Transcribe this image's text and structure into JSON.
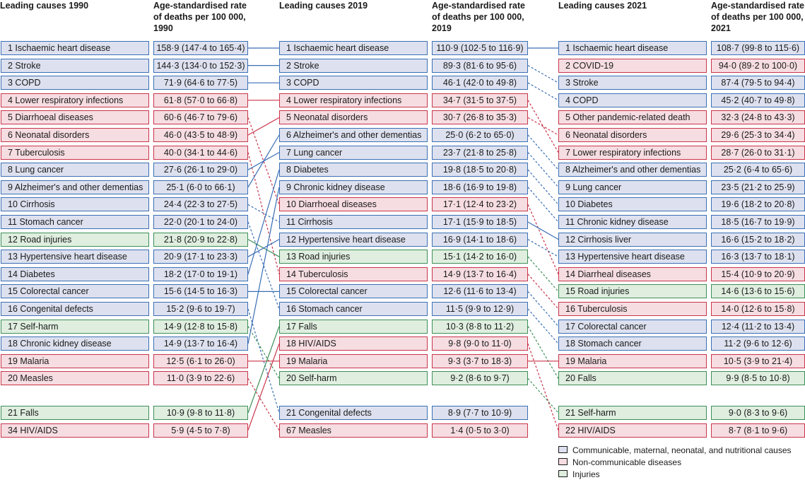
{
  "colors": {
    "communicable": "#3a6fb5",
    "non_communicable": "#c8354a",
    "injuries": "#3d8f57"
  },
  "headers": [
    {
      "cause": "Leading causes 1990",
      "rate1": "Age-standardised rate",
      "rate2": "of deaths per 100 000,",
      "rate3": "1990"
    },
    {
      "cause": "Leading causes 2019",
      "rate1": "Age-standardised rate",
      "rate2": "of deaths per 100 000,",
      "rate3": "2019"
    },
    {
      "cause": "Leading causes 2021",
      "rate1": "Age-standardised rate",
      "rate2": "of deaths per 100 000,",
      "rate3": "2021"
    }
  ],
  "columns": [
    [
      {
        "cause": "1 Ischaemic heart disease",
        "rate": "158·9 (147·4 to 165·4)",
        "group": "blue"
      },
      {
        "cause": "2 Stroke",
        "rate": "144·3 (134·0 to 152·3)",
        "group": "blue"
      },
      {
        "cause": "3 COPD",
        "rate": "71·9 (64·6 to 77·5)",
        "group": "blue"
      },
      {
        "cause": "4 Lower respiratory infections",
        "rate": "61·8 (57·0 to 66·8)",
        "group": "red"
      },
      {
        "cause": "5 Diarrhoeal diseases",
        "rate": "60·6 (46·7 to 79·6)",
        "group": "red"
      },
      {
        "cause": "6 Neonatal disorders",
        "rate": "46·0 (43·5 to 48·9)",
        "group": "red"
      },
      {
        "cause": "7 Tuberculosis",
        "rate": "40·0 (34·1 to 44·6)",
        "group": "red"
      },
      {
        "cause": "8 Lung cancer",
        "rate": "27·6 (26·1 to 29·0)",
        "group": "blue"
      },
      {
        "cause": "9 Alzheimer's and other dementias",
        "rate": "25·1 (6·0 to 66·1)",
        "group": "blue"
      },
      {
        "cause": "10 Cirrhosis",
        "rate": "24·4 (22·3 to 27·5)",
        "group": "blue"
      },
      {
        "cause": "11 Stomach cancer",
        "rate": "22·0 (20·1 to 24·0)",
        "group": "blue"
      },
      {
        "cause": "12 Road injuries",
        "rate": "21·8 (20·9 to 22·8)",
        "group": "green"
      },
      {
        "cause": "13 Hypertensive heart disease",
        "rate": "20·9 (17·1 to 23·3)",
        "group": "blue"
      },
      {
        "cause": "14 Diabetes",
        "rate": "18·2 (17·0 to 19·1)",
        "group": "blue"
      },
      {
        "cause": "15 Colorectal cancer",
        "rate": "15·6 (14·5 to 16·3)",
        "group": "blue"
      },
      {
        "cause": "16 Congenital defects",
        "rate": "15·2 (9·6 to 19·7)",
        "group": "blue"
      },
      {
        "cause": "17 Self-harm",
        "rate": "14·9 (12·8 to 15·8)",
        "group": "green"
      },
      {
        "cause": "18 Chronic kidney disease",
        "rate": "14·9 (13·7 to 16·4)",
        "group": "blue"
      },
      {
        "cause": "19 Malaria",
        "rate": "12·5 (6·1 to 26·0)",
        "group": "red"
      },
      {
        "cause": "20 Measles",
        "rate": "11·0 (3·9 to 22·6)",
        "group": "red"
      },
      {
        "cause": "21 Falls",
        "rate": "10·9 (9·8 to 11·8)",
        "group": "green"
      },
      {
        "cause": "34 HIV/AIDS",
        "rate": "5·9 (4·5 to 7·8)",
        "group": "red"
      }
    ],
    [
      {
        "cause": "1 Ischaemic heart disease",
        "rate": "110·9 (102·5 to 116·9)",
        "group": "blue"
      },
      {
        "cause": "2 Stroke",
        "rate": "89·3 (81·6 to 95·6)",
        "group": "blue"
      },
      {
        "cause": "3 COPD",
        "rate": "46·1 (42·0 to 49·8)",
        "group": "blue"
      },
      {
        "cause": "4 Lower respiratory infections",
        "rate": "34·7 (31·5 to 37·5)",
        "group": "red"
      },
      {
        "cause": "5 Neonatal disorders",
        "rate": "30·7 (26·8 to 35·3)",
        "group": "red"
      },
      {
        "cause": "6 Alzheimer's and other dementias",
        "rate": "25·0 (6·2 to 65·0)",
        "group": "blue"
      },
      {
        "cause": "7 Lung cancer",
        "rate": "23·7 (21·8 to 25·8)",
        "group": "blue"
      },
      {
        "cause": "8 Diabetes",
        "rate": "19·8 (18·5 to 20·8)",
        "group": "blue"
      },
      {
        "cause": "9 Chronic kidney disease",
        "rate": "18·6 (16·9 to 19·8)",
        "group": "blue"
      },
      {
        "cause": "10 Diarrhoeal diseases",
        "rate": "17·1 (12·4 to 23·2)",
        "group": "red"
      },
      {
        "cause": "11 Cirrhosis",
        "rate": "17·1 (15·9 to 18·5)",
        "group": "blue"
      },
      {
        "cause": "12 Hypertensive heart disease",
        "rate": "16·9 (14·1 to 18·6)",
        "group": "blue"
      },
      {
        "cause": "13 Road injuries",
        "rate": "15·1 (14·2 to 16·0)",
        "group": "green"
      },
      {
        "cause": "14 Tuberculosis",
        "rate": "14·9 (13·7 to 16·4)",
        "group": "red"
      },
      {
        "cause": "15 Colorectal cancer",
        "rate": "12·6 (11·6 to 13·4)",
        "group": "blue"
      },
      {
        "cause": "16 Stomach cancer",
        "rate": "11·5 (9·9 to 12·9)",
        "group": "blue"
      },
      {
        "cause": "17 Falls",
        "rate": "10·3 (8·8 to 11·2)",
        "group": "green"
      },
      {
        "cause": "18 HIV/AIDS",
        "rate": "9·8 (9·0 to 11·0)",
        "group": "red"
      },
      {
        "cause": "19 Malaria",
        "rate": "9·3 (3·7 to 18·3)",
        "group": "red"
      },
      {
        "cause": "20 Self-harm",
        "rate": "9·2 (8·6 to 9·7)",
        "group": "green"
      },
      {
        "cause": "21 Congenital defects",
        "rate": "8·9 (7·7 to 10·9)",
        "group": "blue"
      },
      {
        "cause": "67 Measles",
        "rate": "1·4 (0·5 to 3·0)",
        "group": "red"
      }
    ],
    [
      {
        "cause": "1 Ischaemic heart disease",
        "rate": "108·7 (99·8 to 115·6)",
        "group": "blue"
      },
      {
        "cause": "2 COVID-19",
        "rate": "94·0 (89·2 to 100·0)",
        "group": "red"
      },
      {
        "cause": "3 Stroke",
        "rate": "87·4 (79·5 to 94·4)",
        "group": "blue"
      },
      {
        "cause": "4 COPD",
        "rate": "45·2 (40·7 to 49·8)",
        "group": "blue"
      },
      {
        "cause": "5 Other pandemic-related death",
        "rate": "32·3 (24·8 to 43·3)",
        "group": "red"
      },
      {
        "cause": "6 Neonatal disorders",
        "rate": "29·6 (25·3 to 34·4)",
        "group": "red"
      },
      {
        "cause": "7 Lower respiratory infections",
        "rate": "28·7 (26·0 to 31·1)",
        "group": "red"
      },
      {
        "cause": "8 Alzheimer's and other dementias",
        "rate": "25·2 (6·4 to 65·6)",
        "group": "blue"
      },
      {
        "cause": "9 Lung cancer",
        "rate": "23·5 (21·2 to 25·9)",
        "group": "blue"
      },
      {
        "cause": "10 Diabetes",
        "rate": "19·6 (18·2 to 20·8)",
        "group": "blue"
      },
      {
        "cause": "11 Chronic kidney disease",
        "rate": "18·5 (16·7 to 19·9)",
        "group": "blue"
      },
      {
        "cause": "12 Cirrhosis liver",
        "rate": "16·6 (15·2 to 18·2)",
        "group": "blue"
      },
      {
        "cause": "13 Hypertensive heart disease",
        "rate": "16·3 (13·7 to 18·1)",
        "group": "blue"
      },
      {
        "cause": "14 Diarrheal diseases",
        "rate": "15·4 (10·9 to 20·9)",
        "group": "red"
      },
      {
        "cause": "15 Road injuries",
        "rate": "14·6 (13·6 to 15·6)",
        "group": "green"
      },
      {
        "cause": "16 Tuberculosis",
        "rate": "14·0 (12·6 to 15·8)",
        "group": "red"
      },
      {
        "cause": "17 Colorectal cancer",
        "rate": "12·4 (11·2 to 13·4)",
        "group": "blue"
      },
      {
        "cause": "18 Stomach cancer",
        "rate": "11·2 (9·6 to 12·6)",
        "group": "blue"
      },
      {
        "cause": "19 Malaria",
        "rate": "10·5 (3·9 to 21·4)",
        "group": "red"
      },
      {
        "cause": "20 Falls",
        "rate": "9·9 (8·5 to 10·8)",
        "group": "green"
      },
      {
        "cause": "21 Self-harm",
        "rate": "9·0 (8·3 to 9·6)",
        "group": "green"
      },
      {
        "cause": "22 HIV/AIDS",
        "rate": "8·7 (8·1 to 9·6)",
        "group": "red"
      }
    ]
  ],
  "links": [
    {
      "from_col": 0,
      "from_row": 0,
      "to_row": 0,
      "dashed": false
    },
    {
      "from_col": 0,
      "from_row": 1,
      "to_row": 1,
      "dashed": false
    },
    {
      "from_col": 0,
      "from_row": 2,
      "to_row": 2,
      "dashed": false
    },
    {
      "from_col": 0,
      "from_row": 3,
      "to_row": 3,
      "dashed": false
    },
    {
      "from_col": 0,
      "from_row": 4,
      "to_row": 9,
      "dashed": true
    },
    {
      "from_col": 0,
      "from_row": 5,
      "to_row": 4,
      "dashed": false
    },
    {
      "from_col": 0,
      "from_row": 6,
      "to_row": 13,
      "dashed": true
    },
    {
      "from_col": 0,
      "from_row": 7,
      "to_row": 6,
      "dashed": false
    },
    {
      "from_col": 0,
      "from_row": 8,
      "to_row": 5,
      "dashed": false
    },
    {
      "from_col": 0,
      "from_row": 9,
      "to_row": 10,
      "dashed": true
    },
    {
      "from_col": 0,
      "from_row": 10,
      "to_row": 15,
      "dashed": true
    },
    {
      "from_col": 0,
      "from_row": 11,
      "to_row": 12,
      "dashed": false
    },
    {
      "from_col": 0,
      "from_row": 12,
      "to_row": 11,
      "dashed": false
    },
    {
      "from_col": 0,
      "from_row": 13,
      "to_row": 7,
      "dashed": false
    },
    {
      "from_col": 0,
      "from_row": 14,
      "to_row": 14,
      "dashed": false
    },
    {
      "from_col": 0,
      "from_row": 15,
      "to_row": 20,
      "dashed": true
    },
    {
      "from_col": 0,
      "from_row": 16,
      "to_row": 19,
      "dashed": true
    },
    {
      "from_col": 0,
      "from_row": 17,
      "to_row": 8,
      "dashed": false
    },
    {
      "from_col": 0,
      "from_row": 18,
      "to_row": 18,
      "dashed": false
    },
    {
      "from_col": 0,
      "from_row": 19,
      "to_row": 21,
      "dashed": true
    },
    {
      "from_col": 0,
      "from_row": 20,
      "to_row": 16,
      "dashed": false
    },
    {
      "from_col": 0,
      "from_row": 21,
      "to_row": 17,
      "dashed": false
    },
    {
      "from_col": 1,
      "from_row": 0,
      "to_row": 0,
      "dashed": false
    },
    {
      "from_col": 1,
      "from_row": 1,
      "to_row": 2,
      "dashed": true
    },
    {
      "from_col": 1,
      "from_row": 2,
      "to_row": 3,
      "dashed": true
    },
    {
      "from_col": 1,
      "from_row": 3,
      "to_row": 6,
      "dashed": true
    },
    {
      "from_col": 1,
      "from_row": 4,
      "to_row": 5,
      "dashed": true
    },
    {
      "from_col": 1,
      "from_row": 5,
      "to_row": 7,
      "dashed": true
    },
    {
      "from_col": 1,
      "from_row": 6,
      "to_row": 8,
      "dashed": true
    },
    {
      "from_col": 1,
      "from_row": 7,
      "to_row": 9,
      "dashed": true
    },
    {
      "from_col": 1,
      "from_row": 8,
      "to_row": 10,
      "dashed": true
    },
    {
      "from_col": 1,
      "from_row": 9,
      "to_row": 13,
      "dashed": true
    },
    {
      "from_col": 1,
      "from_row": 10,
      "to_row": 11,
      "dashed": false
    },
    {
      "from_col": 1,
      "from_row": 11,
      "to_row": 12,
      "dashed": true
    },
    {
      "from_col": 1,
      "from_row": 12,
      "to_row": 14,
      "dashed": true
    },
    {
      "from_col": 1,
      "from_row": 13,
      "to_row": 15,
      "dashed": true
    },
    {
      "from_col": 1,
      "from_row": 14,
      "to_row": 16,
      "dashed": true
    },
    {
      "from_col": 1,
      "from_row": 15,
      "to_row": 17,
      "dashed": true
    },
    {
      "from_col": 1,
      "from_row": 16,
      "to_row": 19,
      "dashed": true
    },
    {
      "from_col": 1,
      "from_row": 17,
      "to_row": 21,
      "dashed": true
    },
    {
      "from_col": 1,
      "from_row": 18,
      "to_row": 18,
      "dashed": false
    },
    {
      "from_col": 1,
      "from_row": 19,
      "to_row": 20,
      "dashed": true
    }
  ],
  "legend": [
    {
      "label": "Communicable, maternal, neonatal, and nutritional causes",
      "group": "blue"
    },
    {
      "label": "Non-communicable diseases",
      "group": "red"
    },
    {
      "label": "Injuries",
      "group": "green"
    }
  ]
}
